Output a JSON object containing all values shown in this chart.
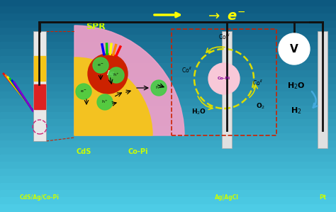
{
  "bg_top_color": "#55ccee",
  "bg_bottom_color": "#1a6a9a",
  "wire_color": "#111111",
  "electrode_color": "#d8d8d8",
  "cds_color": "#f5c518",
  "copi_color": "#f0a0c8",
  "ag_color": "#cc2200",
  "green_circle_color": "#44cc44",
  "voltmeter_color": "#ffffff",
  "voltmeter_text": "V",
  "h2o_text": "H$_2$O",
  "h2_text": "H$_2$",
  "o2_text": "O$_2$",
  "co_pi_center_color": "#f8c8d8",
  "co_arrow_color": "#dddd00",
  "electrode_labels": [
    "CdS/Ag/Co-Pi",
    "Ag|AgCl",
    "Pt"
  ],
  "electrode_label_color": "#ccff00",
  "spr_label": "SPR",
  "spr_color": "#ccff00",
  "cds_label": "CdS",
  "copi_label": "Co-Pi",
  "label_color": "#ccff00",
  "electron_arrow_color": "#ffff00",
  "dashed_box_color": "#cc2200",
  "h2o_arrow_color": "#44aadd"
}
